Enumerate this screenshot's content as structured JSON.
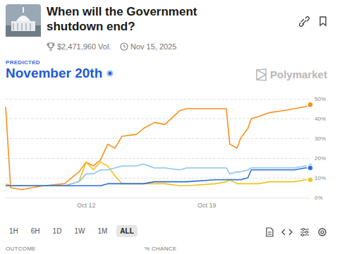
{
  "header": {
    "title": "When will the Government shutdown end?",
    "volume": "$2,471,960 Vol.",
    "end_date": "Nov 15, 2025",
    "predicted_label": "PREDICTED",
    "predicted": "November 20th",
    "brand": "Polymarket"
  },
  "chart_data": {
    "type": "line",
    "x": [
      7.33,
      7.62,
      8.25,
      9.5,
      10.75,
      11.58,
      12.0,
      12.42,
      12.83,
      13.25,
      13.67,
      14.08,
      14.92,
      15.33,
      15.96,
      16.58,
      17.42,
      17.83,
      19.5,
      20.13,
      20.33,
      20.75,
      20.96,
      21.38,
      21.58,
      22.0,
      22.63,
      23.46,
      24.08,
      24.71,
      25.0
    ],
    "series": [
      {
        "color": "#f7901e",
        "values": [
          46,
          5,
          4,
          6,
          7,
          13,
          18,
          16,
          19,
          27,
          25,
          31,
          32,
          35,
          38,
          37,
          44,
          45,
          45,
          45,
          27,
          25,
          30,
          35,
          40,
          41,
          43,
          44,
          45,
          46,
          47
        ]
      },
      {
        "color": "#f2c21b",
        "values": [
          7,
          6,
          6,
          6,
          6,
          8,
          18,
          14,
          18,
          16,
          11,
          7,
          7,
          7,
          7,
          7,
          6,
          6,
          7,
          8,
          9,
          7,
          7,
          7,
          7,
          7,
          8,
          8,
          8,
          9,
          9
        ]
      },
      {
        "color": "#8cc4f7",
        "values": [
          6,
          6,
          6,
          6,
          6,
          8,
          12,
          12,
          14,
          14,
          15,
          16,
          16,
          17,
          15,
          15,
          14,
          15,
          15,
          15,
          12,
          13,
          13,
          14,
          15,
          15,
          15,
          15,
          15,
          16,
          16
        ]
      },
      {
        "color": "#2f6bd8",
        "values": [
          6,
          6,
          6,
          6,
          6,
          6,
          6,
          6,
          6,
          7,
          7,
          7,
          7,
          7,
          8,
          8,
          8,
          8,
          9,
          9,
          9,
          9,
          9,
          10,
          14,
          14,
          14,
          14,
          14,
          15,
          15
        ]
      }
    ],
    "xlim": [
      7.33,
      25
    ],
    "xticks": [
      {
        "value": 12,
        "label": "Oct 12"
      },
      {
        "value": 19,
        "label": "Oct 19"
      }
    ],
    "ylim": [
      0,
      50
    ],
    "yticks": [
      {
        "value": 0,
        "label": "0%"
      },
      {
        "value": 10,
        "label": "10%"
      },
      {
        "value": 20,
        "label": "20%"
      },
      {
        "value": 30,
        "label": "30%"
      },
      {
        "value": 40,
        "label": "40%"
      },
      {
        "value": 50,
        "label": "50%"
      }
    ],
    "grid": true
  },
  "controls": {
    "ranges": [
      "1H",
      "6H",
      "1D",
      "1W",
      "1M",
      "ALL"
    ],
    "selected": "ALL"
  },
  "table_header": [
    "OUTCOME",
    "% CHANCE"
  ]
}
